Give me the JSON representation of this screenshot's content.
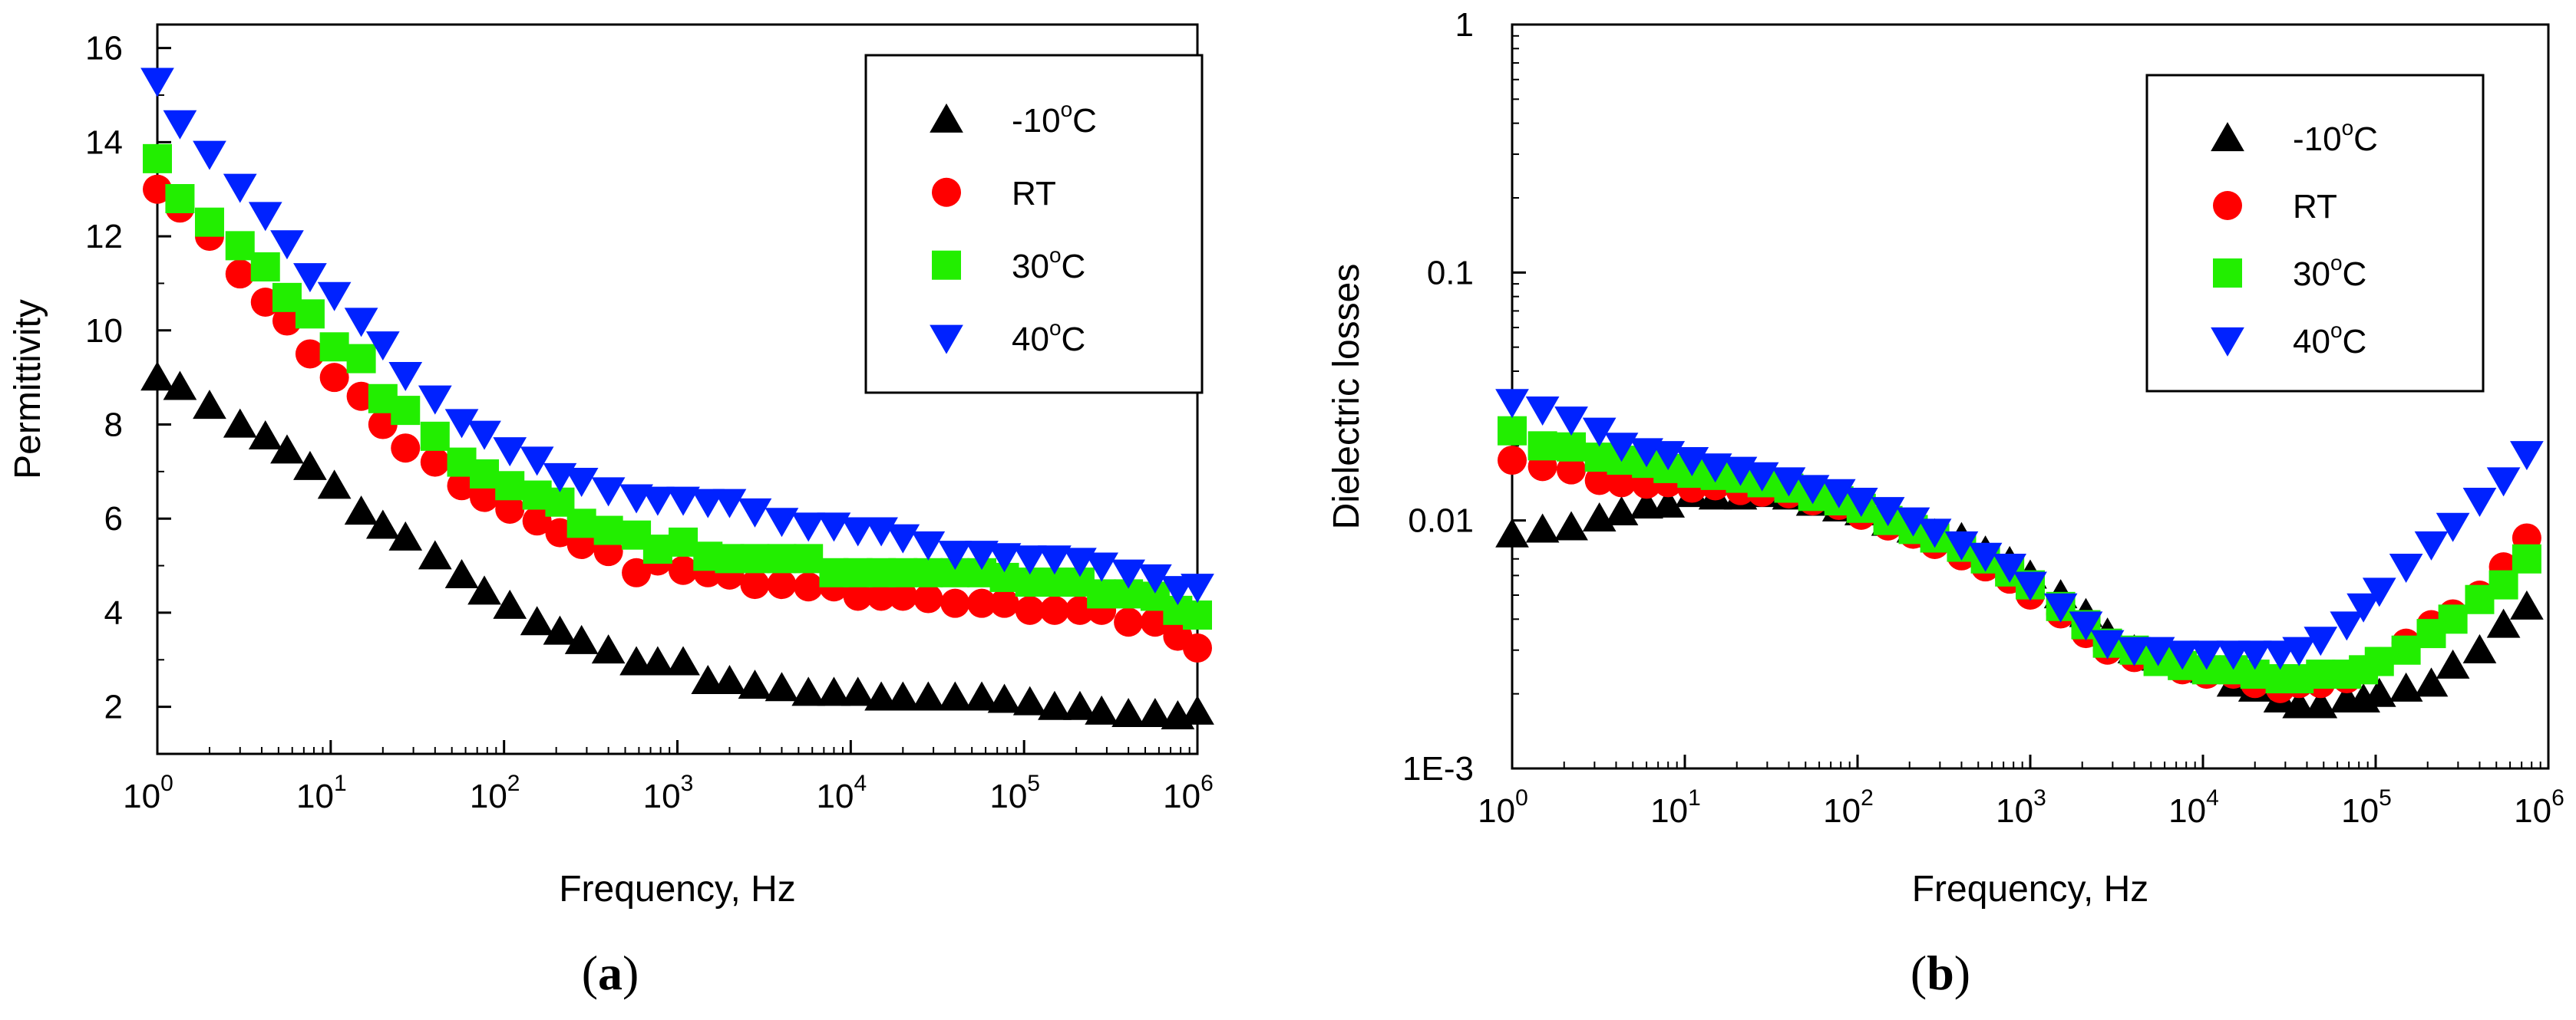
{
  "chart_data": [
    {
      "panel_label": "a",
      "type": "scatter",
      "xlabel": "Frequency, Hz",
      "ylabel": "Permittivity",
      "xscale": "log",
      "yscale": "linear",
      "xlim": [
        1,
        1000000
      ],
      "ylim": [
        1,
        16.5
      ],
      "x_ticks": [
        {
          "value": 1,
          "base": "10",
          "exp": "0"
        },
        {
          "value": 10,
          "base": "10",
          "exp": "1"
        },
        {
          "value": 100,
          "base": "10",
          "exp": "2"
        },
        {
          "value": 1000,
          "base": "10",
          "exp": "3"
        },
        {
          "value": 10000,
          "base": "10",
          "exp": "4"
        },
        {
          "value": 100000,
          "base": "10",
          "exp": "5"
        },
        {
          "value": 1000000,
          "base": "10",
          "exp": "6"
        }
      ],
      "y_ticks": [
        {
          "value": 2,
          "label": "2"
        },
        {
          "value": 4,
          "label": "4"
        },
        {
          "value": 6,
          "label": "6"
        },
        {
          "value": 8,
          "label": "8"
        },
        {
          "value": 10,
          "label": "10"
        },
        {
          "value": 12,
          "label": "12"
        },
        {
          "value": 14,
          "label": "14"
        },
        {
          "value": 16,
          "label": "16"
        }
      ],
      "legend_position": "top-right",
      "grid": false,
      "series": [
        {
          "name": "-10°C",
          "marker": "triangle-up",
          "color": "#000000",
          "x": [
            1,
            1.35,
            2,
            3,
            4.2,
            5.6,
            7.6,
            10.5,
            15,
            20,
            27,
            40,
            57,
            77,
            108,
            155,
            210,
            280,
            400,
            580,
            770,
            1080,
            1500,
            2000,
            2800,
            4000,
            5700,
            8000,
            11000,
            15000,
            20000,
            28000,
            40000,
            57000,
            77000,
            108000,
            150000,
            210000,
            280000,
            400000,
            570000,
            770000,
            1000000
          ],
          "y": [
            9.0,
            8.8,
            8.4,
            8.0,
            7.75,
            7.45,
            7.1,
            6.7,
            6.15,
            5.85,
            5.6,
            5.2,
            4.8,
            4.45,
            4.15,
            3.8,
            3.6,
            3.4,
            3.2,
            2.95,
            2.95,
            2.95,
            2.55,
            2.55,
            2.45,
            2.4,
            2.3,
            2.3,
            2.3,
            2.2,
            2.2,
            2.2,
            2.2,
            2.2,
            2.15,
            2.1,
            2.0,
            2.0,
            1.9,
            1.85,
            1.85,
            1.8,
            1.9
          ]
        },
        {
          "name": "RT",
          "marker": "circle",
          "color": "#ff0000",
          "x": [
            1,
            1.35,
            2,
            3,
            4.2,
            5.6,
            7.6,
            10.5,
            15,
            20,
            27,
            40,
            57,
            77,
            108,
            155,
            210,
            280,
            400,
            580,
            770,
            1080,
            1500,
            2000,
            2800,
            4000,
            5700,
            8000,
            11000,
            15000,
            20000,
            28000,
            40000,
            57000,
            77000,
            108000,
            150000,
            210000,
            280000,
            400000,
            570000,
            770000,
            1000000
          ],
          "y": [
            13.0,
            12.6,
            12.0,
            11.2,
            10.6,
            10.2,
            9.5,
            9.0,
            8.6,
            8.0,
            7.5,
            7.2,
            6.7,
            6.45,
            6.2,
            5.95,
            5.7,
            5.45,
            5.3,
            4.85,
            5.1,
            4.9,
            4.85,
            4.8,
            4.6,
            4.6,
            4.55,
            4.55,
            4.35,
            4.35,
            4.35,
            4.3,
            4.2,
            4.2,
            4.2,
            4.05,
            4.05,
            4.05,
            4.05,
            3.8,
            3.8,
            3.5,
            3.25
          ]
        },
        {
          "name": "30°C",
          "marker": "square",
          "color": "#22ee00",
          "x": [
            1,
            1.35,
            2,
            3,
            4.2,
            5.6,
            7.6,
            10.5,
            15,
            20,
            27,
            40,
            57,
            77,
            108,
            155,
            210,
            280,
            400,
            580,
            770,
            1080,
            1500,
            2000,
            2800,
            4000,
            5700,
            8000,
            11000,
            15000,
            20000,
            28000,
            40000,
            57000,
            77000,
            108000,
            150000,
            210000,
            280000,
            400000,
            570000,
            770000,
            1000000
          ],
          "y": [
            13.65,
            12.8,
            12.3,
            11.8,
            11.35,
            10.7,
            10.35,
            9.65,
            9.4,
            8.55,
            8.3,
            7.75,
            7.2,
            6.95,
            6.7,
            6.5,
            6.35,
            5.9,
            5.75,
            5.65,
            5.35,
            5.5,
            5.2,
            5.15,
            5.15,
            5.15,
            5.15,
            4.85,
            4.85,
            4.85,
            4.85,
            4.85,
            4.85,
            4.85,
            4.75,
            4.65,
            4.65,
            4.65,
            4.4,
            4.4,
            4.35,
            4.05,
            3.95
          ]
        },
        {
          "name": "40°C",
          "marker": "triangle-down",
          "color": "#0022ff",
          "x": [
            1,
            1.35,
            2,
            3,
            4.2,
            5.6,
            7.6,
            10.5,
            15,
            20,
            27,
            40,
            57,
            77,
            108,
            155,
            210,
            280,
            400,
            580,
            770,
            1080,
            1500,
            2000,
            2800,
            4000,
            5700,
            8000,
            11000,
            15000,
            20000,
            28000,
            40000,
            57000,
            77000,
            108000,
            150000,
            210000,
            280000,
            400000,
            570000,
            770000,
            1000000
          ],
          "y": [
            15.3,
            14.4,
            13.75,
            13.05,
            12.45,
            11.85,
            11.15,
            10.75,
            10.2,
            9.7,
            9.05,
            8.55,
            8.05,
            7.8,
            7.45,
            7.25,
            6.9,
            6.8,
            6.6,
            6.45,
            6.4,
            6.4,
            6.35,
            6.35,
            6.15,
            5.95,
            5.85,
            5.85,
            5.75,
            5.75,
            5.6,
            5.45,
            5.25,
            5.25,
            5.2,
            5.15,
            5.15,
            5.1,
            5.0,
            4.85,
            4.75,
            4.5,
            4.55
          ]
        }
      ]
    },
    {
      "panel_label": "b",
      "type": "scatter",
      "xlabel": "Frequency, Hz",
      "ylabel": "Dielectric losses",
      "xscale": "log",
      "yscale": "log",
      "xlim": [
        1,
        1000000
      ],
      "ylim": [
        0.001,
        1
      ],
      "x_ticks": [
        {
          "value": 1,
          "base": "10",
          "exp": "0"
        },
        {
          "value": 10,
          "base": "10",
          "exp": "1"
        },
        {
          "value": 100,
          "base": "10",
          "exp": "2"
        },
        {
          "value": 1000,
          "base": "10",
          "exp": "3"
        },
        {
          "value": 10000,
          "base": "10",
          "exp": "4"
        },
        {
          "value": 100000,
          "base": "10",
          "exp": "5"
        },
        {
          "value": 1000000,
          "base": "10",
          "exp": "6"
        }
      ],
      "y_ticks": [
        {
          "value": 0.001,
          "label": "1E-3"
        },
        {
          "value": 0.01,
          "label": "0.01"
        },
        {
          "value": 0.1,
          "label": "0.1"
        },
        {
          "value": 1,
          "label": "1"
        }
      ],
      "legend_position": "top-right",
      "grid": false,
      "series": [
        {
          "name": "-10°C",
          "marker": "triangle-up",
          "color": "#000000",
          "x": [
            1,
            1.5,
            2.2,
            3.2,
            4.3,
            6,
            8,
            11,
            15,
            21,
            28,
            40,
            55,
            78,
            105,
            150,
            210,
            280,
            400,
            550,
            760,
            1000,
            1500,
            2100,
            2800,
            4000,
            5500,
            7600,
            10500,
            15000,
            20000,
            28000,
            36000,
            48000,
            68000,
            85000,
            105000,
            150000,
            210000,
            280000,
            400000,
            550000,
            750000
          ],
          "y": [
            0.0088,
            0.0092,
            0.0094,
            0.0102,
            0.0108,
            0.0115,
            0.0116,
            0.0128,
            0.0125,
            0.0125,
            0.0128,
            0.0125,
            0.0118,
            0.0112,
            0.0108,
            0.0098,
            0.0092,
            0.0088,
            0.0085,
            0.0075,
            0.0068,
            0.006,
            0.005,
            0.0042,
            0.0035,
            0.003,
            0.0028,
            0.0027,
            0.0025,
            0.0022,
            0.0021,
            0.0019,
            0.0018,
            0.0018,
            0.0019,
            0.0019,
            0.002,
            0.0021,
            0.0022,
            0.0026,
            0.003,
            0.0038,
            0.0045
          ]
        },
        {
          "name": "RT",
          "marker": "circle",
          "color": "#ff0000",
          "x": [
            1,
            1.5,
            2.2,
            3.2,
            4.3,
            6,
            8,
            11,
            15,
            21,
            28,
            40,
            55,
            78,
            105,
            150,
            210,
            280,
            400,
            550,
            760,
            1000,
            1500,
            2100,
            2800,
            4000,
            5500,
            7600,
            10500,
            15000,
            20000,
            28000,
            36000,
            48000,
            68000,
            85000,
            105000,
            150000,
            210000,
            280000,
            400000,
            550000,
            750000
          ],
          "y": [
            0.0175,
            0.0165,
            0.016,
            0.0145,
            0.0142,
            0.014,
            0.0142,
            0.0135,
            0.0138,
            0.0132,
            0.013,
            0.0128,
            0.012,
            0.0115,
            0.0105,
            0.0095,
            0.0088,
            0.008,
            0.0072,
            0.0065,
            0.0058,
            0.005,
            0.0042,
            0.0035,
            0.003,
            0.0028,
            0.0027,
            0.0025,
            0.0024,
            0.0024,
            0.0022,
            0.0021,
            0.0022,
            0.0022,
            0.0023,
            0.0025,
            0.0027,
            0.0032,
            0.0038,
            0.0042,
            0.005,
            0.0065,
            0.0085
          ]
        },
        {
          "name": "30°C",
          "marker": "square",
          "color": "#22ee00",
          "x": [
            1,
            1.5,
            2.2,
            3.2,
            4.3,
            6,
            8,
            11,
            15,
            21,
            28,
            40,
            55,
            78,
            105,
            150,
            210,
            280,
            400,
            550,
            760,
            1000,
            1500,
            2100,
            2800,
            4000,
            5500,
            7600,
            10500,
            15000,
            20000,
            28000,
            36000,
            48000,
            68000,
            85000,
            105000,
            150000,
            210000,
            280000,
            400000,
            550000,
            750000
          ],
          "y": [
            0.023,
            0.02,
            0.0198,
            0.018,
            0.0175,
            0.017,
            0.0162,
            0.0155,
            0.0152,
            0.0148,
            0.0142,
            0.0135,
            0.0125,
            0.012,
            0.0112,
            0.01,
            0.0092,
            0.0085,
            0.0078,
            0.007,
            0.0062,
            0.0055,
            0.0045,
            0.0038,
            0.0032,
            0.003,
            0.0027,
            0.0026,
            0.0025,
            0.0025,
            0.0024,
            0.0023,
            0.0023,
            0.0024,
            0.0024,
            0.0025,
            0.0027,
            0.003,
            0.0035,
            0.004,
            0.0048,
            0.0055,
            0.007
          ]
        },
        {
          "name": "40°C",
          "marker": "triangle-down",
          "color": "#0022ff",
          "x": [
            1,
            1.5,
            2.2,
            3.2,
            4.3,
            6,
            8,
            11,
            15,
            21,
            28,
            40,
            55,
            78,
            105,
            150,
            210,
            280,
            400,
            550,
            760,
            1000,
            1500,
            2100,
            2800,
            4000,
            5500,
            7600,
            10500,
            15000,
            20000,
            28000,
            36000,
            48000,
            68000,
            85000,
            105000,
            150000,
            210000,
            280000,
            400000,
            550000,
            750000
          ],
          "y": [
            0.03,
            0.028,
            0.0255,
            0.023,
            0.02,
            0.019,
            0.0185,
            0.0175,
            0.0165,
            0.016,
            0.0152,
            0.0145,
            0.0135,
            0.013,
            0.012,
            0.011,
            0.01,
            0.009,
            0.008,
            0.0072,
            0.0065,
            0.0055,
            0.0045,
            0.0038,
            0.0032,
            0.003,
            0.003,
            0.0029,
            0.0029,
            0.0029,
            0.0029,
            0.0029,
            0.003,
            0.0033,
            0.0038,
            0.0045,
            0.0052,
            0.0065,
            0.008,
            0.0095,
            0.012,
            0.0145,
            0.0185
          ]
        }
      ]
    }
  ]
}
